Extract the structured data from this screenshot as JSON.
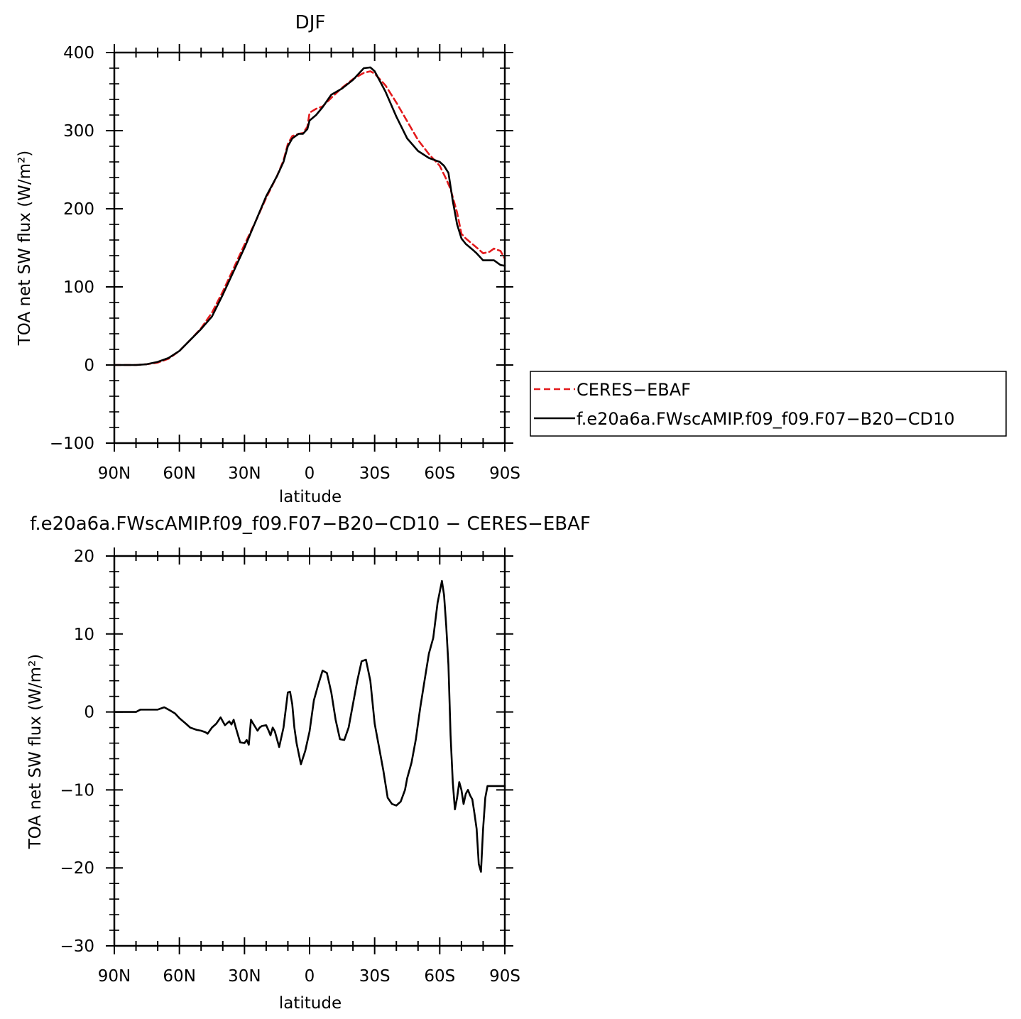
{
  "chart_data": [
    {
      "type": "line",
      "title": "DJF",
      "xlabel": "latitude",
      "ylabel": "TOA net SW flux (W/m²)",
      "x_ticks": [
        "90N",
        "60N",
        "30N",
        "0",
        "30S",
        "60S",
        "90S"
      ],
      "y_ticks": [
        "400",
        "300",
        "200",
        "100",
        "0",
        "−100"
      ],
      "xlim": [
        90,
        -90
      ],
      "ylim": [
        -100,
        400
      ],
      "grid": false,
      "legend_position": "right",
      "series": [
        {
          "name": "CERES−EBAF",
          "color": "#e31a1c",
          "dash": "dashed",
          "lat": [
            90,
            85,
            80,
            75,
            70,
            65,
            60,
            55,
            50,
            45,
            40,
            35,
            30,
            25,
            20,
            15,
            12,
            10,
            8,
            5,
            3,
            1,
            0,
            -3,
            -6,
            -10,
            -15,
            -20,
            -25,
            -28,
            -30,
            -35,
            -40,
            -45,
            -50,
            -55,
            -60,
            -63,
            -65,
            -68,
            -70,
            -72,
            -75,
            -78,
            -80,
            -83,
            -85,
            -88,
            -90
          ],
          "values": [
            0,
            0,
            0,
            1,
            3,
            8,
            18,
            32,
            47,
            67,
            94,
            124,
            154,
            183,
            214,
            242,
            262,
            283,
            293,
            296,
            297,
            305,
            323,
            328,
            331,
            342,
            355,
            366,
            374,
            376,
            373,
            358,
            336,
            312,
            288,
            270,
            255,
            238,
            225,
            195,
            168,
            162,
            155,
            148,
            143,
            145,
            149,
            146,
            136
          ]
        },
        {
          "name": "f.e20a6a.FWscAMIP.f09_f09.F07−B20−CD10",
          "color": "#000000",
          "dash": "solid",
          "lat": [
            90,
            85,
            80,
            75,
            70,
            65,
            60,
            55,
            50,
            45,
            40,
            35,
            30,
            25,
            20,
            15,
            12,
            10,
            8,
            5,
            3,
            1,
            0,
            -3,
            -6,
            -10,
            -15,
            -20,
            -25,
            -28,
            -30,
            -35,
            -40,
            -45,
            -50,
            -55,
            -60,
            -62,
            -64,
            -66,
            -68,
            -70,
            -72,
            -75,
            -77,
            -80,
            -83,
            -85,
            -88,
            -90
          ],
          "values": [
            0,
            0,
            0,
            1,
            4,
            9,
            18,
            32,
            46,
            62,
            90,
            120,
            150,
            183,
            216,
            242,
            260,
            280,
            290,
            296,
            296,
            302,
            313,
            320,
            330,
            346,
            354,
            365,
            380,
            381,
            376,
            350,
            318,
            290,
            274,
            265,
            260,
            255,
            246,
            210,
            180,
            162,
            155,
            148,
            143,
            134,
            134,
            134,
            128,
            127
          ]
        }
      ]
    },
    {
      "type": "line",
      "title": "f.e20a6a.FWscAMIP.f09_f09.F07−B20−CD10 − CERES−EBAF",
      "xlabel": "latitude",
      "ylabel": "TOA net SW flux (W/m²)",
      "x_ticks": [
        "90N",
        "60N",
        "30N",
        "0",
        "30S",
        "60S",
        "90S"
      ],
      "y_ticks": [
        "20",
        "10",
        "0",
        "−10",
        "−20",
        "−30"
      ],
      "xlim": [
        90,
        -90
      ],
      "ylim": [
        -30,
        20
      ],
      "grid": false,
      "series": [
        {
          "color": "#000000",
          "dash": "solid",
          "lat": [
            90,
            85,
            82,
            80,
            78,
            75,
            72,
            70,
            67,
            65,
            62,
            60,
            57,
            55,
            52,
            50,
            48,
            47,
            45,
            43,
            41,
            39,
            37,
            36,
            35,
            34,
            32,
            30,
            29,
            28,
            27,
            26,
            24,
            23,
            22,
            20,
            19,
            18,
            17,
            16,
            14,
            12,
            10,
            9,
            8,
            7,
            6,
            4,
            2,
            0,
            -2,
            -4,
            -6,
            -8,
            -10,
            -12,
            -14,
            -16,
            -18,
            -20,
            -22,
            -24,
            -26,
            -28,
            -30,
            -32,
            -34,
            -36,
            -38,
            -40,
            -42,
            -44,
            -45,
            -47,
            -49,
            -51,
            -53,
            -55,
            -57,
            -59,
            -61,
            -62,
            -63,
            -64,
            -65,
            -66,
            -67,
            -68,
            -69,
            -70,
            -71,
            -72,
            -73,
            -74,
            -75,
            -76,
            -77,
            -78,
            -79,
            -80,
            -81,
            -82,
            -83,
            -84,
            -85,
            -86,
            -87,
            -88,
            -89,
            -90
          ],
          "values": [
            0,
            0,
            0,
            0,
            0.3,
            0.3,
            0.3,
            0.3,
            0.6,
            0.3,
            -0.2,
            -0.8,
            -1.5,
            -2.0,
            -2.3,
            -2.4,
            -2.6,
            -2.8,
            -2.0,
            -1.5,
            -0.7,
            -1.7,
            -1.2,
            -1.6,
            -1.0,
            -2.0,
            -3.9,
            -4.0,
            -3.6,
            -4.2,
            -1.0,
            -1.5,
            -2.4,
            -2.0,
            -1.8,
            -1.7,
            -2.3,
            -3.0,
            -2.0,
            -2.5,
            -4.5,
            -2.0,
            2.5,
            2.6,
            1.0,
            -2.0,
            -4.0,
            -6.7,
            -5.0,
            -2.5,
            1.5,
            3.5,
            5.3,
            5.0,
            2.5,
            -1.0,
            -3.5,
            -3.6,
            -2.0,
            1.0,
            4.0,
            6.5,
            6.7,
            4.0,
            -1.5,
            -4.5,
            -7.5,
            -11.0,
            -11.8,
            -12.0,
            -11.5,
            -10.0,
            -8.5,
            -6.5,
            -3.5,
            0.5,
            4.0,
            7.5,
            9.5,
            14.0,
            16.8,
            15.0,
            11.0,
            6.0,
            -3.0,
            -9.0,
            -12.5,
            -11.0,
            -9.0,
            -10.0,
            -11.8,
            -10.5,
            -10.0,
            -10.7,
            -11.2,
            -13.0,
            -15.0,
            -19.5,
            -20.5,
            -15.0,
            -11.0,
            -9.5,
            -9.5,
            -9.5,
            -9.5,
            -9.5,
            -9.5,
            -9.5,
            -9.5,
            -9.5
          ]
        }
      ]
    }
  ]
}
